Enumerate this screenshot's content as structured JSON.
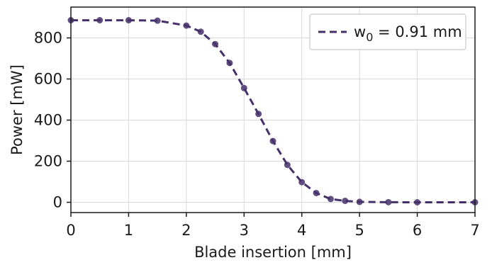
{
  "chart_data": {
    "type": "line",
    "xlabel": "Blade insertion [mm]",
    "ylabel": "Power [mW]",
    "xlim": [
      0,
      7
    ],
    "ylim": [
      -50,
      950
    ],
    "xticks": [
      0,
      1,
      2,
      3,
      4,
      5,
      6,
      7
    ],
    "xtick_labels": [
      "0",
      "1",
      "2",
      "3",
      "4",
      "5",
      "6",
      "7"
    ],
    "yticks": [
      0,
      200,
      400,
      600,
      800
    ],
    "ytick_labels": [
      "0",
      "200",
      "400",
      "600",
      "800"
    ],
    "grid": true,
    "legend_position": "top-right",
    "series": [
      {
        "name": "w0 = 0.91 mm",
        "legend_main": "w",
        "legend_sub": "0",
        "legend_rest": " = 0.91 mm",
        "color": "#46306b",
        "line_style": "dashed",
        "marker": "circle",
        "x": [
          0,
          0.5,
          1,
          1.5,
          2,
          2.25,
          2.5,
          2.75,
          3,
          3.25,
          3.5,
          3.75,
          4,
          4.25,
          4.5,
          4.75,
          5,
          5.5,
          6,
          7
        ],
        "y": [
          886,
          886,
          886,
          884,
          860,
          830,
          770,
          678,
          556,
          430,
          298,
          182,
          98,
          45,
          16,
          7,
          2,
          0.5,
          0,
          0
        ]
      }
    ]
  }
}
